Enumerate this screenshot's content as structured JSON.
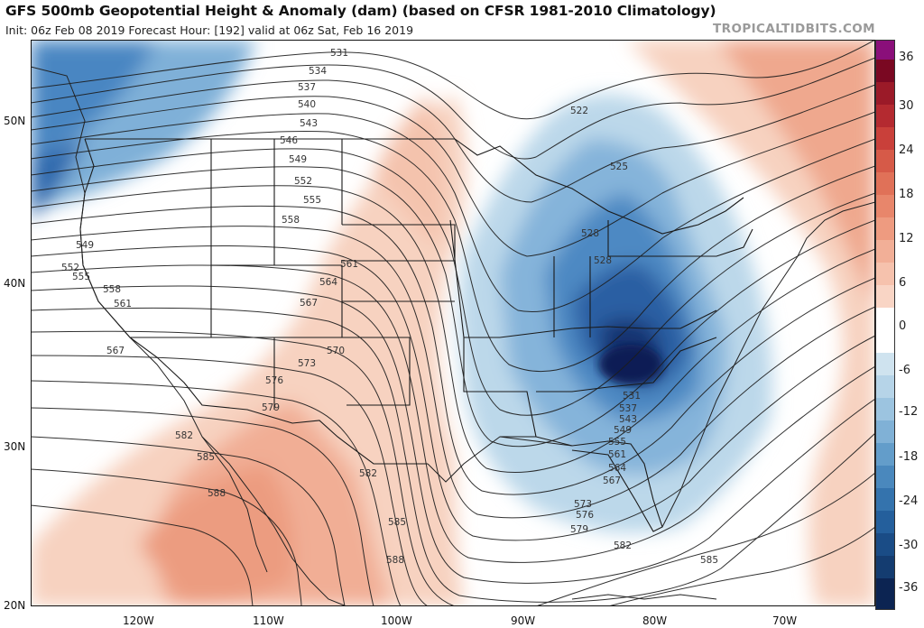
{
  "header": {
    "title": "GFS 500mb Geopotential Height & Anomaly (dam) (based on CFSR 1981-2010 Climatology)",
    "subtitle": "Init: 06z Feb 08 2019   Forecast Hour: [192]   valid at 06z Sat, Feb 16 2019",
    "brand": "TROPICALTIDBITS.COM"
  },
  "axes": {
    "lat_labels": [
      "50N",
      "40N",
      "30N",
      "20N"
    ],
    "lon_labels": [
      "120W",
      "110W",
      "100W",
      "90W",
      "80W",
      "70W"
    ]
  },
  "colorbar": {
    "labels": [
      "36",
      "30",
      "24",
      "18",
      "12",
      "6",
      "0",
      "-6",
      "-12",
      "-18",
      "-24",
      "-30",
      "-36"
    ]
  },
  "contour_labels": {
    "west": [
      "531",
      "534",
      "537",
      "540",
      "543",
      "546",
      "549",
      "552",
      "555",
      "558",
      "561",
      "564",
      "567",
      "570",
      "573",
      "576",
      "579"
    ],
    "pacific": [
      "549",
      "552",
      "555",
      "558",
      "561",
      "567"
    ],
    "south": [
      "582",
      "585",
      "588",
      "582",
      "585",
      "588",
      "585",
      "582",
      "579",
      "576",
      "573"
    ],
    "trough": [
      "522",
      "525",
      "528",
      "528",
      "531",
      "537",
      "543",
      "549",
      "555",
      "561",
      "564",
      "567"
    ]
  },
  "colors": {
    "cold_deep": "#0a1a4e",
    "cold_mid": "#3a78b8",
    "cold_light": "#bcd8ea",
    "warm_light": "#f7d2c0",
    "warm_mid": "#ed9a7e",
    "contour": "#1c1c1c"
  }
}
